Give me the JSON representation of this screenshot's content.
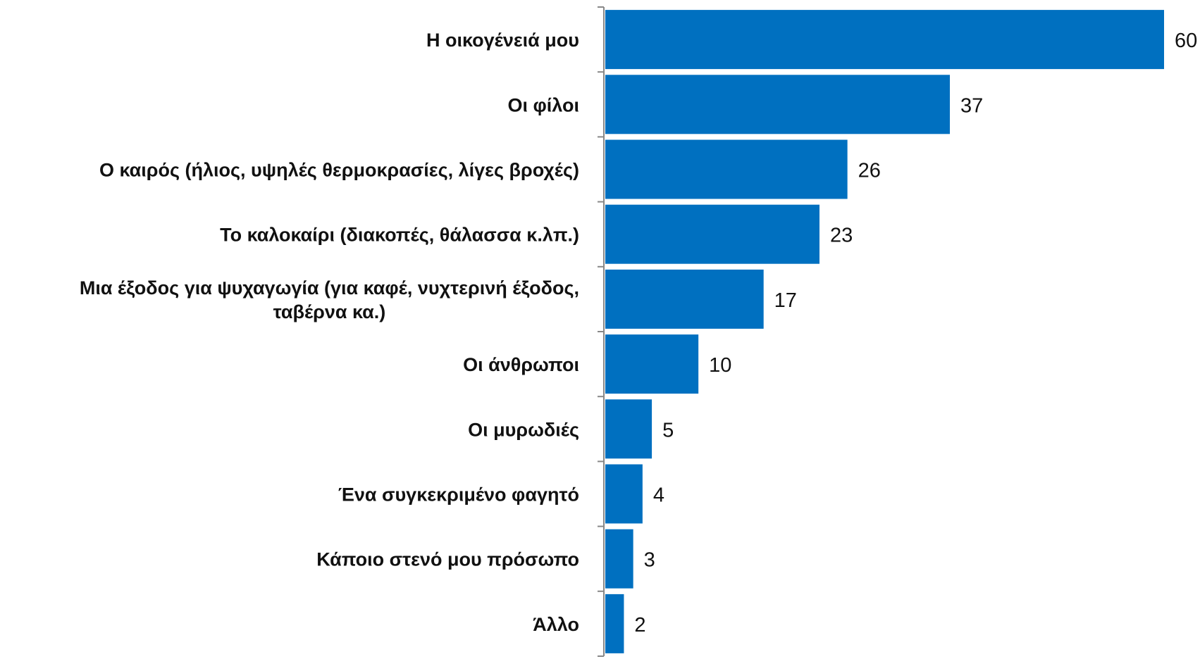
{
  "chart_data": {
    "type": "bar",
    "orientation": "horizontal",
    "categories": [
      [
        "Η οικογένειά μου"
      ],
      [
        "Οι φίλοι"
      ],
      [
        "Ο καιρός (ήλιος, υψηλές θερμοκρασίες, λίγες βροχές)"
      ],
      [
        "Το καλοκαίρι (διακοπές, θάλασσα κ.λπ.)"
      ],
      [
        "Μια έξοδος για ψυχαγωγία (για καφέ, νυχτερινή έξοδος,",
        "ταβέρνα κα.)"
      ],
      [
        "Οι άνθρωποι"
      ],
      [
        "Οι μυρωδιές"
      ],
      [
        "Ένα συγκεκριμένο φαγητό"
      ],
      [
        "Κάποιο στενό μου πρόσωπο"
      ],
      [
        "Άλλο"
      ]
    ],
    "values": [
      60,
      37,
      26,
      23,
      17,
      10,
      5,
      4,
      3,
      2
    ],
    "value_labels": [
      "60",
      "37",
      "26",
      "23",
      "17",
      "10",
      "5",
      "4",
      "3",
      "2"
    ],
    "title": "",
    "xlabel": "",
    "ylabel": "",
    "xlim": [
      0,
      60
    ],
    "grid": false,
    "legend": "none",
    "colors": {
      "bar": "#0070c0",
      "axis": "#888888",
      "text": "#111111"
    }
  }
}
